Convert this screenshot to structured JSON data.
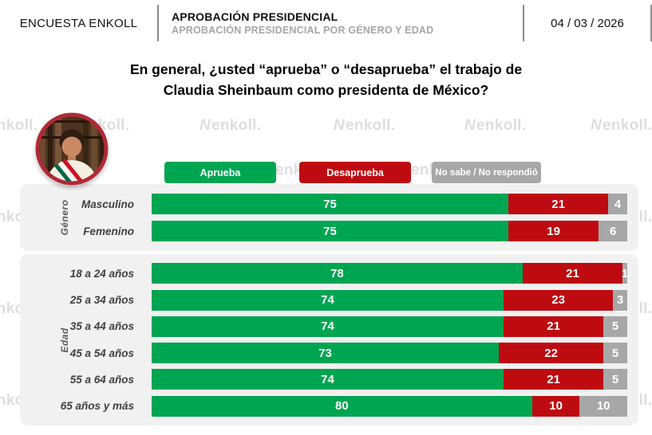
{
  "header": {
    "brand": "ENCUESTA ENKOLL",
    "title": "APROBACIÓN PRESIDENCIAL",
    "subtitle": "APROBACIÓN PRESIDENCIAL POR GÉNERO Y EDAD",
    "date": "04 / 03 / 2026"
  },
  "question": {
    "line1": "En general, ¿usted “aprueba” o “desaprueba” el trabajo de",
    "line2": "Claudia Sheinbaum como presidenta de México?"
  },
  "watermark_text": "enkoll.",
  "legend": [
    {
      "label": "Aprueba",
      "color": "#00a551"
    },
    {
      "label": "Desaprueba",
      "color": "#be0b11"
    },
    {
      "label": "No sabe / No respondió",
      "color": "#a7a7a7"
    }
  ],
  "chart_data": {
    "type": "bar",
    "orientation": "horizontal",
    "stacked": true,
    "title": "En general, ¿usted “aprueba” o “desaprueba” el trabajo de Claudia Sheinbaum como presidenta de México?",
    "legend_position": "top",
    "xlim": [
      0,
      100
    ],
    "grid": false,
    "series_names": [
      "Aprueba",
      "Desaprueba",
      "No sabe / No respondió"
    ],
    "series_colors": [
      "#00a551",
      "#be0b11",
      "#a7a7a7"
    ],
    "groups": [
      {
        "label": "Género",
        "rows": [
          {
            "category": "Masculino",
            "values": [
              75,
              21,
              4
            ]
          },
          {
            "category": "Femenino",
            "values": [
              75,
              19,
              6
            ]
          }
        ]
      },
      {
        "label": "Edad",
        "rows": [
          {
            "category": "18 a 24 años",
            "values": [
              78,
              21,
              1
            ]
          },
          {
            "category": "25 a 34 años",
            "values": [
              74,
              23,
              3
            ]
          },
          {
            "category": "35 a 44 años",
            "values": [
              74,
              21,
              5
            ]
          },
          {
            "category": "45 a 54 años",
            "values": [
              73,
              22,
              5
            ]
          },
          {
            "category": "55 a 64 años",
            "values": [
              74,
              21,
              5
            ]
          },
          {
            "category": "65 años y más",
            "values": [
              80,
              10,
              10
            ]
          }
        ]
      }
    ]
  }
}
